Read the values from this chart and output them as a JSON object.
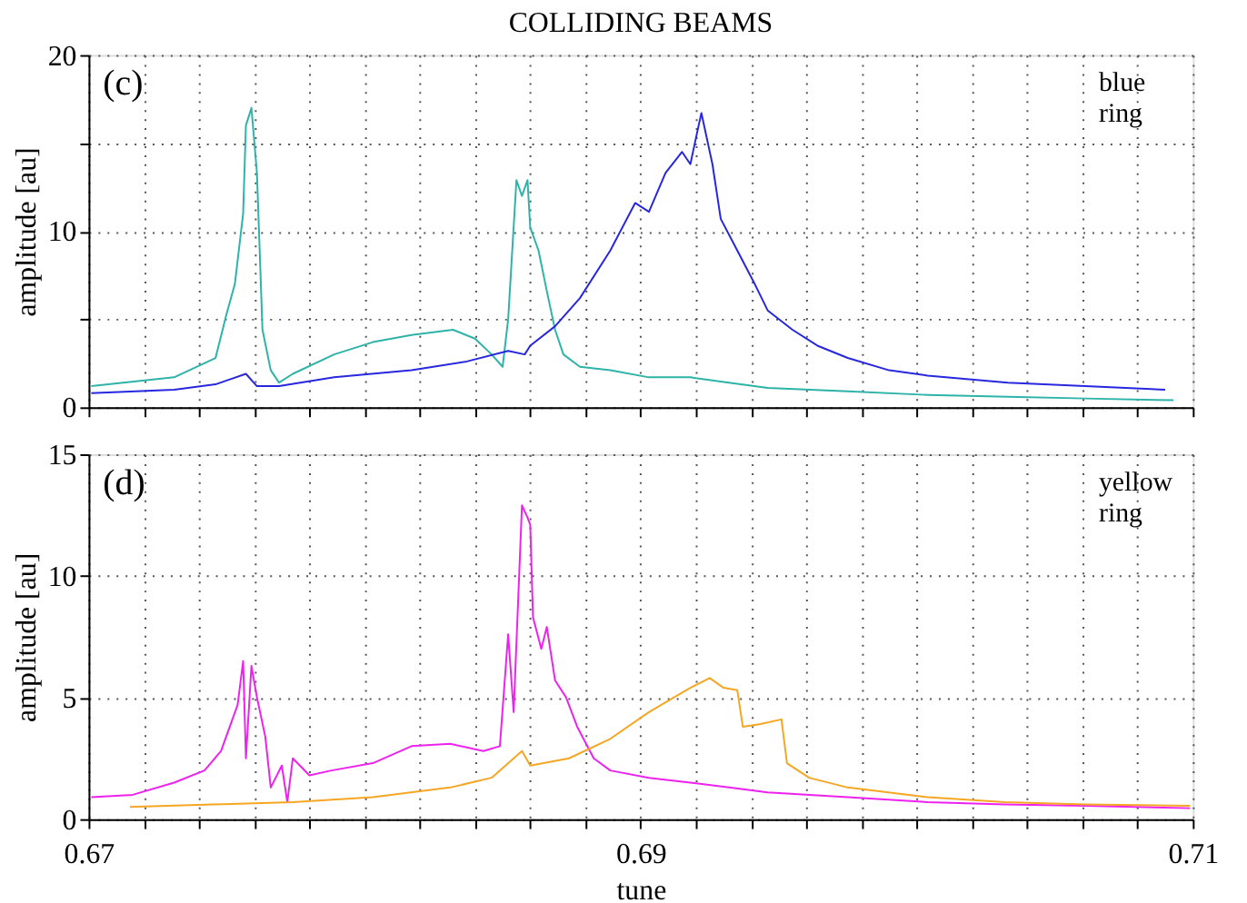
{
  "chart_data": [
    {
      "type": "line",
      "title": "COLLIDING BEAMS",
      "ylabel": "amplitude [au]",
      "annotations": [
        "(c)",
        "blue ring"
      ],
      "xlim": [
        0.67,
        0.71
      ],
      "xticks": [
        {
          "value": 0.67,
          "label": null
        },
        {
          "value": 0.672,
          "label": null
        },
        {
          "value": 0.674,
          "label": null
        },
        {
          "value": 0.676,
          "label": null
        },
        {
          "value": 0.678,
          "label": null
        },
        {
          "value": 0.68,
          "label": null
        },
        {
          "value": 0.682,
          "label": null
        },
        {
          "value": 0.684,
          "label": null
        },
        {
          "value": 0.686,
          "label": null
        },
        {
          "value": 0.688,
          "label": null
        },
        {
          "value": 0.69,
          "label": null
        },
        {
          "value": 0.692,
          "label": null
        },
        {
          "value": 0.694,
          "label": null
        },
        {
          "value": 0.696,
          "label": null
        },
        {
          "value": 0.698,
          "label": null
        },
        {
          "value": 0.7,
          "label": null
        },
        {
          "value": 0.702,
          "label": null
        },
        {
          "value": 0.704,
          "label": null
        },
        {
          "value": 0.706,
          "label": null
        },
        {
          "value": 0.708,
          "label": null
        },
        {
          "value": 0.71,
          "label": null
        }
      ],
      "ylim": [
        0,
        20
      ],
      "yticks": [
        0,
        {
          "value": 5,
          "label": null
        },
        10,
        {
          "value": 15,
          "label": null
        },
        20
      ],
      "grid": true,
      "tick_labels": "y",
      "line_style": "solid",
      "series": [
        {
          "color": "#2db3a8",
          "x": [
            0.6701,
            0.6731,
            0.6746,
            0.675,
            0.6753,
            0.6756,
            0.6757,
            0.6759,
            0.6761,
            0.6763,
            0.6766,
            0.6769,
            0.6774,
            0.6789,
            0.6803,
            0.6817,
            0.6832,
            0.684,
            0.6846,
            0.685,
            0.6852,
            0.6855,
            0.6857,
            0.6859,
            0.686,
            0.6863,
            0.6866,
            0.6869,
            0.6872,
            0.6878,
            0.6889,
            0.6903,
            0.6918,
            0.6932,
            0.6946,
            0.6975,
            0.7004,
            0.7033,
            0.7061,
            0.7093
          ],
          "values": [
            1.2,
            1.7,
            2.8,
            5.3,
            7,
            11,
            16,
            17,
            13.3,
            4.4,
            2.1,
            1.4,
            1.9,
            3,
            3.7,
            4.1,
            4.4,
            3.9,
            3,
            2.3,
            5,
            12.9,
            12,
            12.9,
            10.2,
            8.9,
            6.6,
            4.4,
            3,
            2.3,
            2.1,
            1.7,
            1.7,
            1.4,
            1.1,
            0.9,
            0.7,
            0.6,
            0.5,
            0.4
          ]
        },
        {
          "color": "#2727e0",
          "x": [
            0.6701,
            0.6731,
            0.6746,
            0.6757,
            0.6761,
            0.6769,
            0.6789,
            0.6817,
            0.6837,
            0.6852,
            0.6858,
            0.686,
            0.6869,
            0.6878,
            0.6889,
            0.6898,
            0.6903,
            0.6909,
            0.6915,
            0.6918,
            0.6921,
            0.6922,
            0.6926,
            0.6929,
            0.6935,
            0.6941,
            0.6946,
            0.6955,
            0.6964,
            0.6975,
            0.699,
            0.7004,
            0.7033,
            0.7061,
            0.709
          ],
          "values": [
            0.8,
            1.0,
            1.3,
            1.9,
            1.2,
            1.2,
            1.7,
            2.1,
            2.6,
            3.2,
            3.0,
            3.5,
            4.6,
            6.2,
            8.9,
            11.6,
            11.1,
            13.3,
            14.5,
            13.8,
            16,
            16.7,
            13.8,
            10.7,
            8.9,
            7.1,
            5.5,
            4.4,
            3.5,
            2.8,
            2.1,
            1.8,
            1.4,
            1.2,
            1.0
          ]
        }
      ]
    },
    {
      "type": "line",
      "xlabel": "tune",
      "ylabel": "amplitude [au]",
      "annotations": [
        "(d)",
        "yellow ring"
      ],
      "xlim": [
        0.67,
        0.71
      ],
      "xticks": [
        0.67,
        {
          "value": 0.672,
          "label": null
        },
        {
          "value": 0.674,
          "label": null
        },
        {
          "value": 0.676,
          "label": null
        },
        {
          "value": 0.678,
          "label": null
        },
        {
          "value": 0.68,
          "label": null
        },
        {
          "value": 0.682,
          "label": null
        },
        {
          "value": 0.684,
          "label": null
        },
        {
          "value": 0.686,
          "label": null
        },
        {
          "value": 0.688,
          "label": null
        },
        0.69,
        {
          "value": 0.692,
          "label": null
        },
        {
          "value": 0.694,
          "label": null
        },
        {
          "value": 0.696,
          "label": null
        },
        {
          "value": 0.698,
          "label": null
        },
        {
          "value": 0.7,
          "label": null
        },
        {
          "value": 0.702,
          "label": null
        },
        {
          "value": 0.704,
          "label": null
        },
        {
          "value": 0.706,
          "label": null
        },
        {
          "value": 0.708,
          "label": null
        },
        0.71
      ],
      "ylim": [
        0,
        15
      ],
      "yticks": [
        0,
        5,
        10,
        15
      ],
      "grid": true,
      "line_style": "solid",
      "series": [
        {
          "color": "#ee22ee",
          "x": [
            0.6701,
            0.6716,
            0.6731,
            0.6742,
            0.6748,
            0.6754,
            0.6756,
            0.6757,
            0.6759,
            0.6761,
            0.6764,
            0.6766,
            0.677,
            0.6772,
            0.6774,
            0.678,
            0.6788,
            0.6803,
            0.6817,
            0.6831,
            0.6843,
            0.6849,
            0.6852,
            0.6854,
            0.6857,
            0.6859,
            0.686,
            0.6861,
            0.6864,
            0.6866,
            0.6869,
            0.6873,
            0.6877,
            0.6883,
            0.6889,
            0.6903,
            0.6918,
            0.6932,
            0.6946,
            0.6975,
            0.7004,
            0.7032,
            0.7061,
            0.7099
          ],
          "values": [
            0.9,
            1.0,
            1.5,
            2.0,
            2.8,
            4.7,
            6.5,
            2.5,
            6.3,
            5.0,
            3.4,
            1.3,
            2.2,
            0.7,
            2.5,
            1.8,
            2.0,
            2.3,
            3.0,
            3.1,
            2.8,
            3.0,
            7.6,
            4.4,
            12.9,
            12.4,
            12.1,
            8.3,
            7.0,
            7.9,
            5.7,
            5.0,
            3.8,
            2.5,
            2.0,
            1.7,
            1.5,
            1.3,
            1.1,
            0.9,
            0.7,
            0.6,
            0.55,
            0.45
          ]
        },
        {
          "color": "#f5a623",
          "x": [
            0.6715,
            0.6745,
            0.6774,
            0.6803,
            0.6831,
            0.6846,
            0.6857,
            0.686,
            0.6874,
            0.6889,
            0.6903,
            0.6918,
            0.6925,
            0.693,
            0.6935,
            0.6937,
            0.6943,
            0.6951,
            0.6953,
            0.6961,
            0.6975,
            0.7004,
            0.7032,
            0.7061,
            0.7099
          ],
          "values": [
            0.5,
            0.6,
            0.7,
            0.9,
            1.3,
            1.7,
            2.8,
            2.2,
            2.5,
            3.3,
            4.4,
            5.4,
            5.8,
            5.4,
            5.3,
            3.8,
            3.9,
            4.1,
            2.3,
            1.7,
            1.3,
            0.9,
            0.7,
            0.6,
            0.55
          ]
        }
      ]
    }
  ]
}
